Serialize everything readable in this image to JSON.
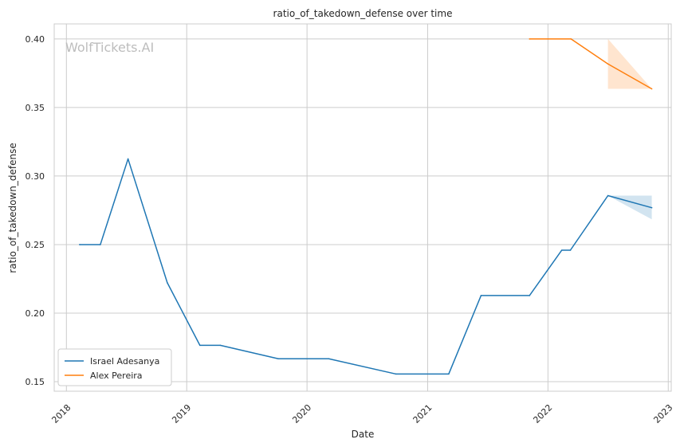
{
  "chart_data": {
    "type": "line",
    "title": "ratio_of_takedown_defense over time",
    "xlabel": "Date",
    "ylabel": "ratio_of_takedown_defense",
    "watermark": "WolfTickets.AI",
    "xlim": [
      "2017-11-25",
      "2023-01-10"
    ],
    "ylim": [
      0.143,
      0.411
    ],
    "x_ticks": [
      "2018-01-01",
      "2019-01-01",
      "2020-01-01",
      "2021-01-01",
      "2022-01-01",
      "2023-01-01"
    ],
    "x_tick_labels": [
      "2018",
      "2019",
      "2020",
      "2021",
      "2022",
      "2023"
    ],
    "y_ticks": [
      0.15,
      0.2,
      0.25,
      0.3,
      0.35,
      0.4
    ],
    "y_tick_labels": [
      "0.15",
      "0.20",
      "0.25",
      "0.30",
      "0.35",
      "0.40"
    ],
    "grid": true,
    "legend_position": "bottom-left",
    "series": [
      {
        "name": "Israel Adesanya",
        "color": "#1f77b4",
        "points": [
          {
            "x": "2018-02-10",
            "y": 0.25
          },
          {
            "x": "2018-04-14",
            "y": 0.25
          },
          {
            "x": "2018-07-07",
            "y": 0.3125
          },
          {
            "x": "2018-11-03",
            "y": 0.2222
          },
          {
            "x": "2019-02-10",
            "y": 0.1765
          },
          {
            "x": "2019-04-13",
            "y": 0.1765
          },
          {
            "x": "2019-10-06",
            "y": 0.1667
          },
          {
            "x": "2020-03-07",
            "y": 0.1667
          },
          {
            "x": "2020-09-26",
            "y": 0.1556
          },
          {
            "x": "2021-03-06",
            "y": 0.1556
          },
          {
            "x": "2021-06-12",
            "y": 0.2128
          },
          {
            "x": "2021-11-06",
            "y": 0.2128
          },
          {
            "x": "2022-02-12",
            "y": 0.2459
          },
          {
            "x": "2022-03-10",
            "y": 0.2459
          },
          {
            "x": "2022-07-02",
            "y": 0.2857
          },
          {
            "x": "2022-11-12",
            "y": 0.2769
          }
        ],
        "band": [
          {
            "x": "2022-07-02",
            "lo": 0.2857,
            "hi": 0.2857
          },
          {
            "x": "2022-11-12",
            "lo": 0.2684,
            "hi": 0.2857
          }
        ]
      },
      {
        "name": "Alex Pereira",
        "color": "#ff7f0e",
        "points": [
          {
            "x": "2021-11-06",
            "y": 0.4
          },
          {
            "x": "2022-03-12",
            "y": 0.4
          },
          {
            "x": "2022-07-02",
            "y": 0.3818
          },
          {
            "x": "2022-11-12",
            "y": 0.3636
          }
        ],
        "band": [
          {
            "x": "2022-07-02",
            "lo": 0.3636,
            "hi": 0.4
          },
          {
            "x": "2022-11-12",
            "lo": 0.3636,
            "hi": 0.3636
          }
        ]
      }
    ]
  }
}
